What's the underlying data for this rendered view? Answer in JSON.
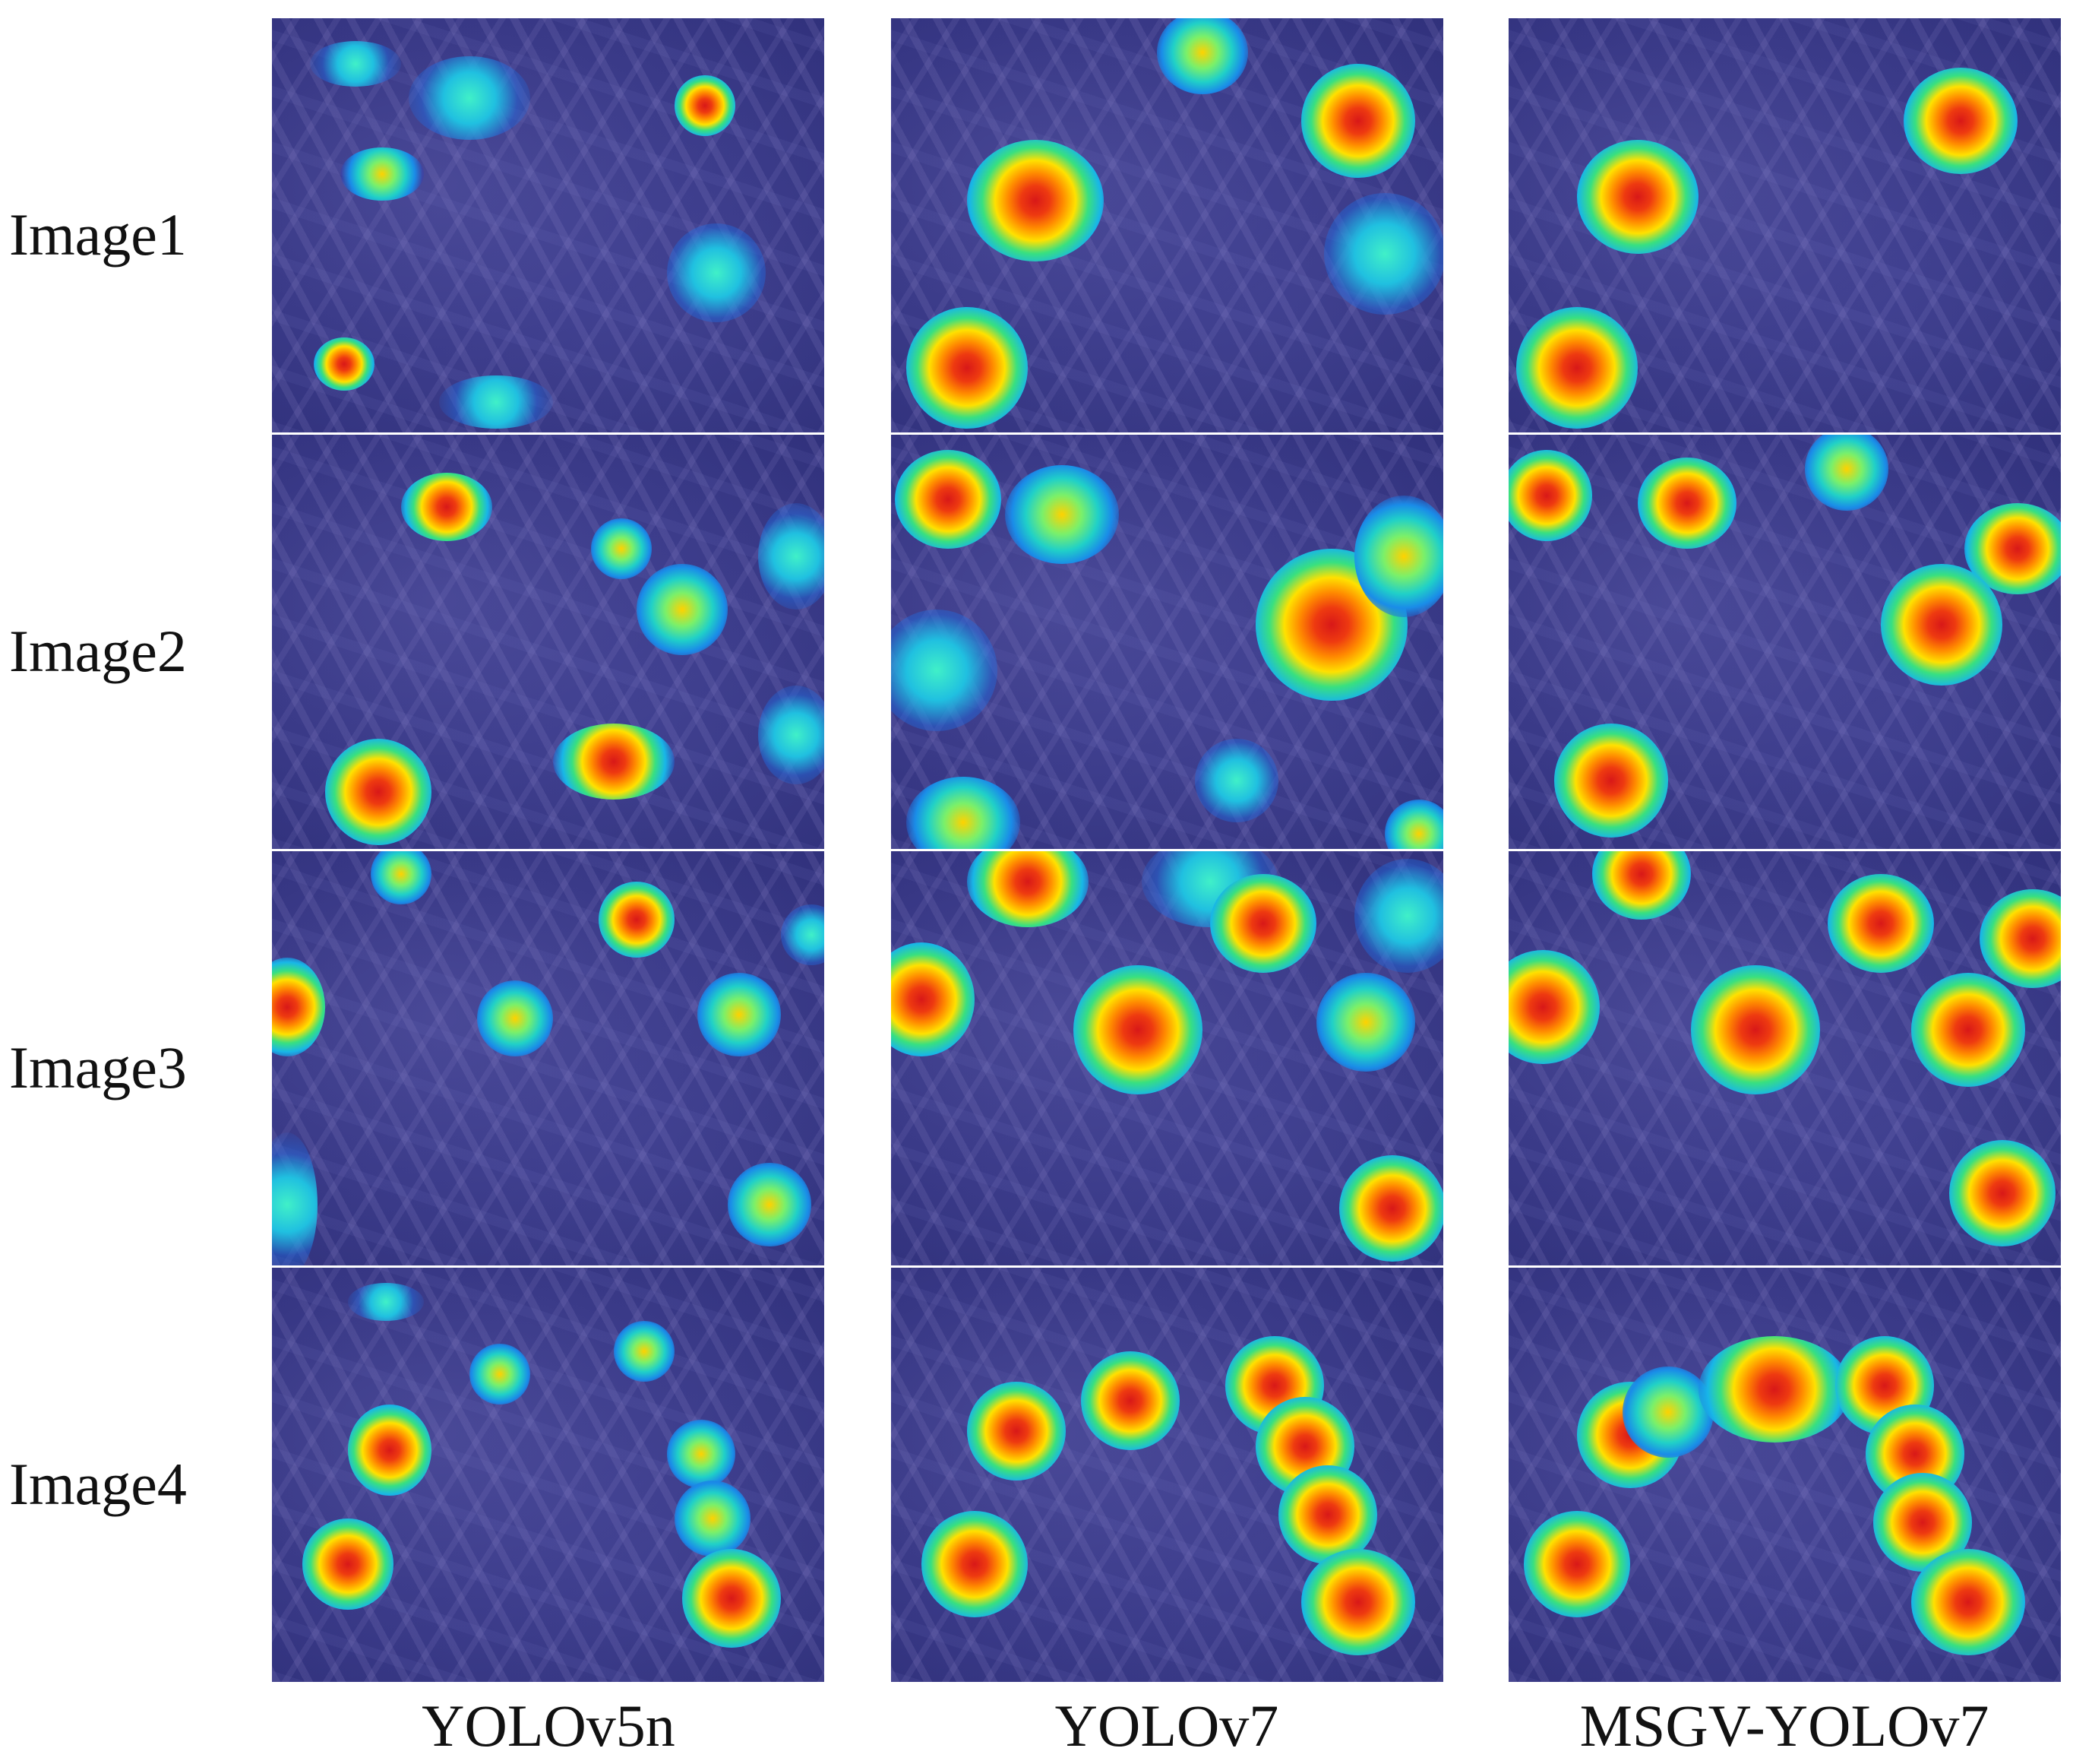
{
  "row_labels": [
    "Image1",
    "Image2",
    "Image3",
    "Image4"
  ],
  "column_labels": [
    "YOLOv5n",
    "YOLOv7",
    "MSGV-YOLOv7"
  ]
}
